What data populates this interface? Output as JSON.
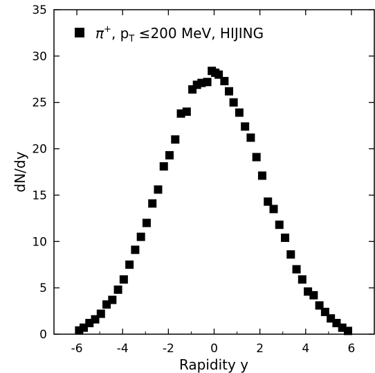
{
  "chart_data": {
    "type": "scatter",
    "legend": {
      "symbol": "π",
      "sup": "+",
      "p": "p",
      "sub": "T",
      "rest": " ≤200 MeV, HIJING",
      "placement": "top-left"
    },
    "xlabel": "Rapidity y",
    "ylabel": "dN/dy",
    "xlim": [
      -7,
      7
    ],
    "ylim": [
      0,
      35
    ],
    "xticks": [
      -6,
      -4,
      -2,
      0,
      2,
      4,
      6
    ],
    "yticks": [
      0,
      5,
      10,
      15,
      20,
      25,
      30,
      35
    ],
    "grid": false,
    "marker": "square",
    "marker_color": "#000000",
    "series": [
      {
        "points": [
          [
            -5.9,
            0.4
          ],
          [
            -5.7,
            0.7
          ],
          [
            -5.45,
            1.2
          ],
          [
            -5.2,
            1.6
          ],
          [
            -4.95,
            2.2
          ],
          [
            -4.7,
            3.2
          ],
          [
            -4.45,
            3.7
          ],
          [
            -4.2,
            4.8
          ],
          [
            -3.95,
            5.9
          ],
          [
            -3.7,
            7.5
          ],
          [
            -3.45,
            9.1
          ],
          [
            -3.2,
            10.5
          ],
          [
            -2.95,
            12.0
          ],
          [
            -2.7,
            14.1
          ],
          [
            -2.45,
            15.6
          ],
          [
            -2.2,
            18.1
          ],
          [
            -1.95,
            19.3
          ],
          [
            -1.7,
            21.0
          ],
          [
            -1.45,
            23.8
          ],
          [
            -1.2,
            24.0
          ],
          [
            -0.95,
            26.4
          ],
          [
            -0.75,
            26.9
          ],
          [
            -0.55,
            27.1
          ],
          [
            -0.3,
            27.2
          ],
          [
            -0.1,
            28.4
          ],
          [
            0.05,
            28.2
          ],
          [
            0.2,
            28.0
          ],
          [
            0.45,
            27.3
          ],
          [
            0.65,
            26.2
          ],
          [
            0.85,
            25.0
          ],
          [
            1.1,
            23.9
          ],
          [
            1.35,
            22.4
          ],
          [
            1.6,
            21.2
          ],
          [
            1.85,
            19.1
          ],
          [
            2.1,
            17.1
          ],
          [
            2.35,
            14.3
          ],
          [
            2.6,
            13.5
          ],
          [
            2.85,
            11.8
          ],
          [
            3.1,
            10.4
          ],
          [
            3.35,
            8.6
          ],
          [
            3.6,
            7.0
          ],
          [
            3.85,
            5.9
          ],
          [
            4.1,
            4.6
          ],
          [
            4.35,
            4.2
          ],
          [
            4.6,
            3.1
          ],
          [
            4.85,
            2.4
          ],
          [
            5.1,
            1.7
          ],
          [
            5.35,
            1.2
          ],
          [
            5.6,
            0.7
          ],
          [
            5.85,
            0.35
          ]
        ]
      }
    ]
  }
}
